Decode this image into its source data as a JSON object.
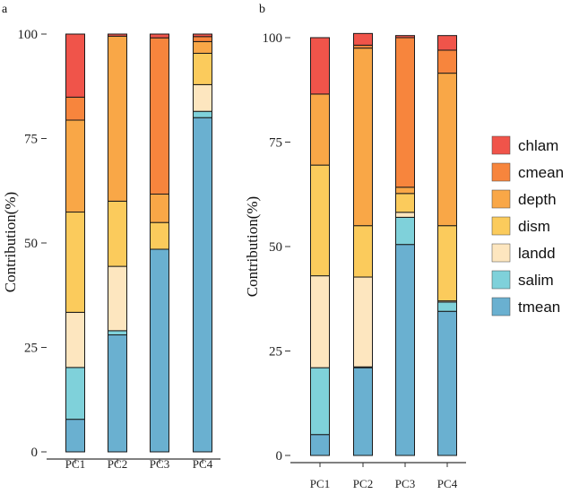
{
  "chart_data": [
    {
      "panel": "a",
      "type": "bar",
      "stacked": true,
      "categories": [
        "PC1",
        "PC2",
        "PC3",
        "PC4"
      ],
      "ylabel": "Contribution(%)",
      "xlabel": "",
      "ylim": [
        0,
        100
      ],
      "yticks": [
        0,
        25,
        50,
        75,
        100
      ],
      "series": [
        {
          "name": "tmean",
          "values": [
            7.8,
            28.0,
            48.5,
            80.0
          ]
        },
        {
          "name": "salim",
          "values": [
            12.4,
            1.0,
            0.0,
            1.5
          ]
        },
        {
          "name": "landd",
          "values": [
            13.2,
            15.4,
            0.0,
            6.4
          ]
        },
        {
          "name": "dism",
          "values": [
            24.0,
            15.6,
            6.4,
            7.5
          ]
        },
        {
          "name": "depth",
          "values": [
            22.0,
            39.5,
            6.8,
            2.8
          ]
        },
        {
          "name": "cmean",
          "values": [
            5.5,
            0.0,
            37.4,
            1.2
          ]
        },
        {
          "name": "chlam",
          "values": [
            15.1,
            0.5,
            0.9,
            0.6
          ]
        }
      ]
    },
    {
      "panel": "b",
      "type": "bar",
      "stacked": true,
      "categories": [
        "PC1",
        "PC2",
        "PC3",
        "PC4"
      ],
      "ylabel": "Contribution(%)",
      "xlabel": "",
      "ylim": [
        0,
        100
      ],
      "yticks": [
        0,
        25,
        50,
        75,
        100
      ],
      "series": [
        {
          "name": "tmean",
          "values": [
            5.0,
            21.0,
            50.5,
            34.5
          ]
        },
        {
          "name": "salim",
          "values": [
            16.0,
            0.2,
            6.5,
            2.2
          ]
        },
        {
          "name": "landd",
          "values": [
            22.0,
            21.5,
            1.2,
            0.3
          ]
        },
        {
          "name": "dism",
          "values": [
            26.5,
            12.3,
            4.5,
            18.0
          ]
        },
        {
          "name": "depth",
          "values": [
            17.0,
            42.5,
            1.5,
            36.5
          ]
        },
        {
          "name": "cmean",
          "values": [
            0.0,
            0.7,
            35.8,
            5.5
          ]
        },
        {
          "name": "chlam",
          "values": [
            13.5,
            2.8,
            0.5,
            3.5
          ]
        }
      ]
    }
  ],
  "legend": {
    "position": "right",
    "items": [
      {
        "name": "chlam",
        "color": "#f0544a"
      },
      {
        "name": "cmean",
        "color": "#f7853d"
      },
      {
        "name": "depth",
        "color": "#f9a747"
      },
      {
        "name": "dism",
        "color": "#fbcb5c"
      },
      {
        "name": "landd",
        "color": "#fde6bf"
      },
      {
        "name": "salim",
        "color": "#7fd1da"
      },
      {
        "name": "tmean",
        "color": "#6ab0d0"
      }
    ]
  },
  "colors": {
    "chlam": "#f0544a",
    "cmean": "#f7853d",
    "depth": "#f9a747",
    "dism": "#fbcb5c",
    "landd": "#fde6bf",
    "salim": "#7fd1da",
    "tmean": "#6ab0d0"
  }
}
